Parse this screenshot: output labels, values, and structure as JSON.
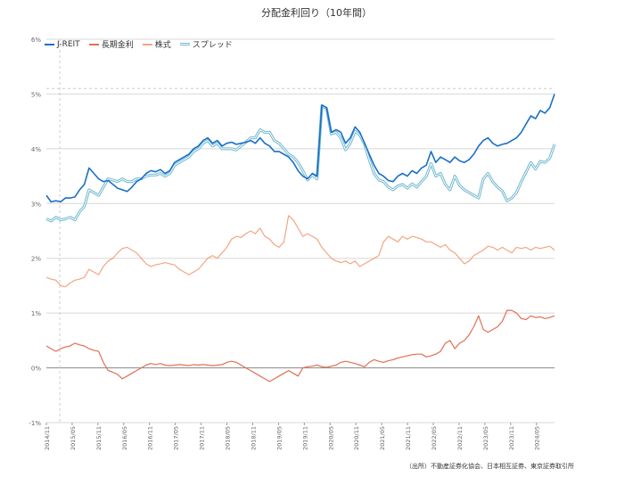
{
  "chart_data": {
    "type": "line",
    "title": "分配金利回り（10年間）",
    "xlabel": "",
    "ylabel": "",
    "ylim": [
      -1,
      6
    ],
    "y_ticks": [
      "-1%",
      "0%",
      "1%",
      "2%",
      "3%",
      "4%",
      "5%",
      "6%"
    ],
    "x_ticks": [
      "2014/11",
      "2015/05",
      "2015/11",
      "2016/05",
      "2016/11",
      "2017/05",
      "2017/11",
      "2018/05",
      "2018/11",
      "2019/05",
      "2019/11",
      "2020/05",
      "2020/11",
      "2021/05",
      "2021/11",
      "2022/05",
      "2022/11",
      "2023/05",
      "2023/11",
      "2024/05"
    ],
    "legend_position": "top-left",
    "grid": true,
    "series": [
      {
        "name": "J-REIT",
        "color": "#1a6fc9",
        "style": "solid",
        "values": [
          3.15,
          3.03,
          3.05,
          3.03,
          3.1,
          3.1,
          3.12,
          3.25,
          3.35,
          3.65,
          3.55,
          3.45,
          3.4,
          3.42,
          3.35,
          3.28,
          3.25,
          3.22,
          3.3,
          3.4,
          3.45,
          3.55,
          3.6,
          3.58,
          3.62,
          3.55,
          3.6,
          3.75,
          3.8,
          3.85,
          3.9,
          4.0,
          4.05,
          4.15,
          4.2,
          4.1,
          4.15,
          4.05,
          4.1,
          4.12,
          4.08,
          4.1,
          4.12,
          4.15,
          4.1,
          4.2,
          4.1,
          4.05,
          3.95,
          3.95,
          3.9,
          3.85,
          3.75,
          3.6,
          3.5,
          3.45,
          3.55,
          3.5,
          4.8,
          4.75,
          4.3,
          4.35,
          4.3,
          4.1,
          4.2,
          4.4,
          4.3,
          4.1,
          3.9,
          3.7,
          3.55,
          3.5,
          3.42,
          3.4,
          3.5,
          3.55,
          3.5,
          3.6,
          3.55,
          3.65,
          3.7,
          3.95,
          3.75,
          3.85,
          3.8,
          3.75,
          3.85,
          3.78,
          3.75,
          3.8,
          3.9,
          4.05,
          4.15,
          4.2,
          4.1,
          4.05,
          4.08,
          4.1,
          4.15,
          4.2,
          4.3,
          4.45,
          4.6,
          4.55,
          4.7,
          4.65,
          4.75,
          5.0
        ]
      },
      {
        "name": "長期金利",
        "color": "#e07055",
        "style": "solid",
        "values": [
          0.4,
          0.35,
          0.3,
          0.35,
          0.38,
          0.4,
          0.45,
          0.42,
          0.4,
          0.35,
          0.32,
          0.3,
          0.1,
          -0.05,
          -0.08,
          -0.12,
          -0.2,
          -0.15,
          -0.1,
          -0.05,
          0.0,
          0.05,
          0.08,
          0.06,
          0.08,
          0.05,
          0.04,
          0.05,
          0.06,
          0.05,
          0.04,
          0.06,
          0.05,
          0.06,
          0.05,
          0.04,
          0.05,
          0.06,
          0.1,
          0.12,
          0.1,
          0.05,
          0.0,
          -0.05,
          -0.1,
          -0.15,
          -0.2,
          -0.25,
          -0.2,
          -0.15,
          -0.1,
          -0.05,
          -0.1,
          -0.15,
          0.0,
          0.02,
          0.03,
          0.05,
          0.02,
          0.01,
          0.03,
          0.05,
          0.1,
          0.12,
          0.1,
          0.08,
          0.05,
          0.02,
          0.1,
          0.15,
          0.12,
          0.1,
          0.13,
          0.15,
          0.18,
          0.2,
          0.22,
          0.24,
          0.25,
          0.25,
          0.2,
          0.22,
          0.25,
          0.3,
          0.45,
          0.5,
          0.35,
          0.45,
          0.5,
          0.6,
          0.75,
          0.95,
          0.7,
          0.65,
          0.7,
          0.75,
          0.85,
          1.05,
          1.05,
          1.0,
          0.9,
          0.88,
          0.95,
          0.92,
          0.93,
          0.9,
          0.92,
          0.95
        ]
      },
      {
        "name": "株式",
        "color": "#f4a582",
        "style": "solid",
        "values": [
          1.65,
          1.62,
          1.6,
          1.5,
          1.48,
          1.55,
          1.6,
          1.62,
          1.65,
          1.8,
          1.75,
          1.7,
          1.85,
          1.95,
          2.0,
          2.1,
          2.18,
          2.2,
          2.15,
          2.1,
          2.0,
          1.9,
          1.85,
          1.88,
          1.9,
          1.92,
          1.9,
          1.88,
          1.8,
          1.75,
          1.7,
          1.75,
          1.8,
          1.9,
          2.0,
          2.05,
          2.0,
          2.1,
          2.2,
          2.35,
          2.4,
          2.38,
          2.45,
          2.5,
          2.45,
          2.55,
          2.4,
          2.35,
          2.25,
          2.2,
          2.3,
          2.78,
          2.7,
          2.55,
          2.4,
          2.45,
          2.4,
          2.35,
          2.2,
          2.1,
          2.0,
          1.95,
          1.92,
          1.95,
          1.9,
          1.95,
          1.85,
          1.9,
          1.95,
          2.0,
          2.05,
          2.3,
          2.4,
          2.35,
          2.3,
          2.4,
          2.35,
          2.4,
          2.38,
          2.35,
          2.3,
          2.3,
          2.25,
          2.2,
          2.25,
          2.15,
          2.1,
          2.0,
          1.9,
          1.95,
          2.05,
          2.1,
          2.15,
          2.22,
          2.2,
          2.15,
          2.2,
          2.15,
          2.1,
          2.2,
          2.18,
          2.2,
          2.15,
          2.2,
          2.18,
          2.2,
          2.22,
          2.15
        ]
      },
      {
        "name": "スプレッド",
        "color": "#6fb8cf",
        "style": "double",
        "values": [
          2.72,
          2.68,
          2.75,
          2.7,
          2.72,
          2.75,
          2.7,
          2.85,
          2.95,
          3.25,
          3.2,
          3.15,
          3.3,
          3.45,
          3.43,
          3.4,
          3.45,
          3.4,
          3.4,
          3.45,
          3.45,
          3.5,
          3.52,
          3.52,
          3.55,
          3.5,
          3.55,
          3.7,
          3.75,
          3.8,
          3.85,
          3.95,
          4.0,
          4.1,
          4.15,
          4.05,
          4.1,
          4.0,
          4.0,
          4.0,
          3.98,
          4.05,
          4.12,
          4.2,
          4.2,
          4.35,
          4.3,
          4.3,
          4.15,
          4.1,
          4.0,
          3.9,
          3.85,
          3.75,
          3.6,
          3.43,
          3.52,
          3.45,
          4.78,
          4.74,
          4.27,
          4.3,
          4.2,
          3.98,
          4.1,
          4.32,
          4.25,
          4.08,
          3.8,
          3.55,
          3.43,
          3.4,
          3.3,
          3.25,
          3.32,
          3.35,
          3.28,
          3.36,
          3.3,
          3.4,
          3.5,
          3.73,
          3.5,
          3.55,
          3.35,
          3.25,
          3.5,
          3.33,
          3.25,
          3.2,
          3.15,
          3.1,
          3.45,
          3.55,
          3.4,
          3.3,
          3.23,
          3.05,
          3.1,
          3.2,
          3.4,
          3.57,
          3.75,
          3.63,
          3.77,
          3.75,
          3.83,
          4.08
        ]
      }
    ],
    "source_note": "（出所）不動産証券化協会、日本相互証券、東京証券取引所"
  }
}
